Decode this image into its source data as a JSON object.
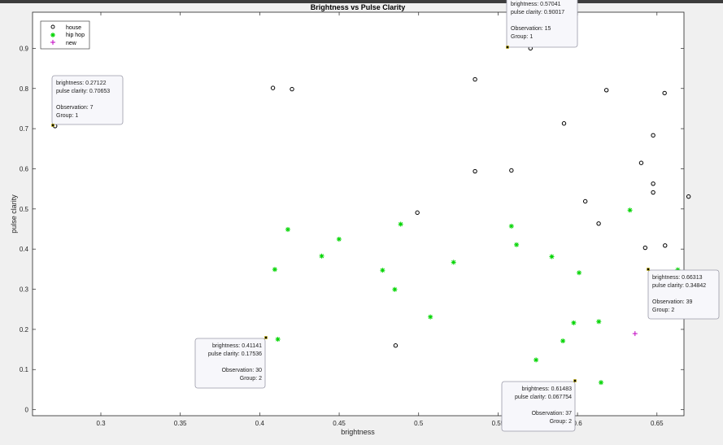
{
  "chart_data": {
    "type": "scatter",
    "title": "Brightness vs Pulse Clarity",
    "xlabel": "brightness",
    "ylabel": "pulse clarity",
    "xlim": [
      0.257,
      0.667
    ],
    "ylim": [
      -0.015,
      0.99
    ],
    "xticks": [
      0.3,
      0.35,
      0.4,
      0.45,
      0.5,
      0.55,
      0.6,
      0.65
    ],
    "xtick_labels": [
      "0.3",
      "0.35",
      "0.4",
      "0.45",
      "0.5",
      "0.55",
      "0.6",
      "0.65"
    ],
    "yticks": [
      0,
      0.1,
      0.2,
      0.3,
      0.4,
      0.5,
      0.6,
      0.7,
      0.8,
      0.9
    ],
    "ytick_labels": [
      "0",
      "0.1",
      "0.2",
      "0.3",
      "0.4",
      "0.5",
      "0.6",
      "0.7",
      "0.8",
      "0.9"
    ],
    "legend_position": "top-left",
    "series": [
      {
        "name": "house",
        "marker": "circle",
        "color": "#000000",
        "points": [
          [
            0.4083,
            0.8013
          ],
          [
            0.4203,
            0.7983
          ],
          [
            0.5355,
            0.8227
          ],
          [
            0.5915,
            0.7129
          ],
          [
            0.6182,
            0.7959
          ],
          [
            0.6548,
            0.7886
          ],
          [
            0.5355,
            0.5938
          ],
          [
            0.5584,
            0.5959
          ],
          [
            0.6401,
            0.6147
          ],
          [
            0.6476,
            0.6834
          ],
          [
            0.6476,
            0.5629
          ],
          [
            0.6476,
            0.5411
          ],
          [
            0.6049,
            0.5189
          ],
          [
            0.6699,
            0.5308
          ],
          [
            0.4992,
            0.4908
          ],
          [
            0.6133,
            0.4636
          ],
          [
            0.6426,
            0.4033
          ],
          [
            0.6551,
            0.4089
          ],
          [
            0.4855,
            0.1598
          ],
          [
            0.2712,
            0.7065
          ],
          [
            0.5704,
            0.9002
          ]
        ]
      },
      {
        "name": "hip hop",
        "marker": "asterisk",
        "color": "#00d400",
        "points": [
          [
            0.4177,
            0.4488
          ],
          [
            0.4095,
            0.3493
          ],
          [
            0.439,
            0.3826
          ],
          [
            0.4499,
            0.4247
          ],
          [
            0.4887,
            0.4621
          ],
          [
            0.4773,
            0.3473
          ],
          [
            0.485,
            0.2995
          ],
          [
            0.522,
            0.3672
          ],
          [
            0.5074,
            0.231
          ],
          [
            0.5584,
            0.4571
          ],
          [
            0.5616,
            0.4108
          ],
          [
            0.5838,
            0.3812
          ],
          [
            0.601,
            0.3411
          ],
          [
            0.633,
            0.4971
          ],
          [
            0.5976,
            0.2163
          ],
          [
            0.6134,
            0.2194
          ],
          [
            0.5908,
            0.1713
          ],
          [
            0.5739,
            0.124
          ],
          [
            0.4114,
            0.1754
          ],
          [
            0.6148,
            0.0678
          ],
          [
            0.6631,
            0.3484
          ]
        ]
      },
      {
        "name": "new",
        "marker": "plus",
        "color": "#c000c0",
        "points": [
          [
            0.6362,
            0.1895
          ]
        ]
      }
    ],
    "datatips": [
      {
        "brightness": "brightness: 0.27122",
        "clarity": "pulse clarity: 0.70653",
        "observation": "Observation: 7",
        "group": "Group: 1"
      },
      {
        "brightness": "brightness: 0.57041",
        "clarity": "pulse clarity: 0.90017",
        "observation": "Observation: 15",
        "group": "Group: 1"
      },
      {
        "brightness": "brightness: 0.41141",
        "clarity": "pulse clarity: 0.17536",
        "observation": "Observation: 30",
        "group": "Group: 2"
      },
      {
        "brightness": "brightness: 0.66313",
        "clarity": "pulse clarity: 0.34842",
        "observation": "Observation: 39",
        "group": "Group: 2"
      },
      {
        "brightness": "brightness: 0.61483",
        "clarity": "pulse clarity: 0.067754",
        "observation": "Observation: 37",
        "group": "Group: 2"
      }
    ]
  }
}
